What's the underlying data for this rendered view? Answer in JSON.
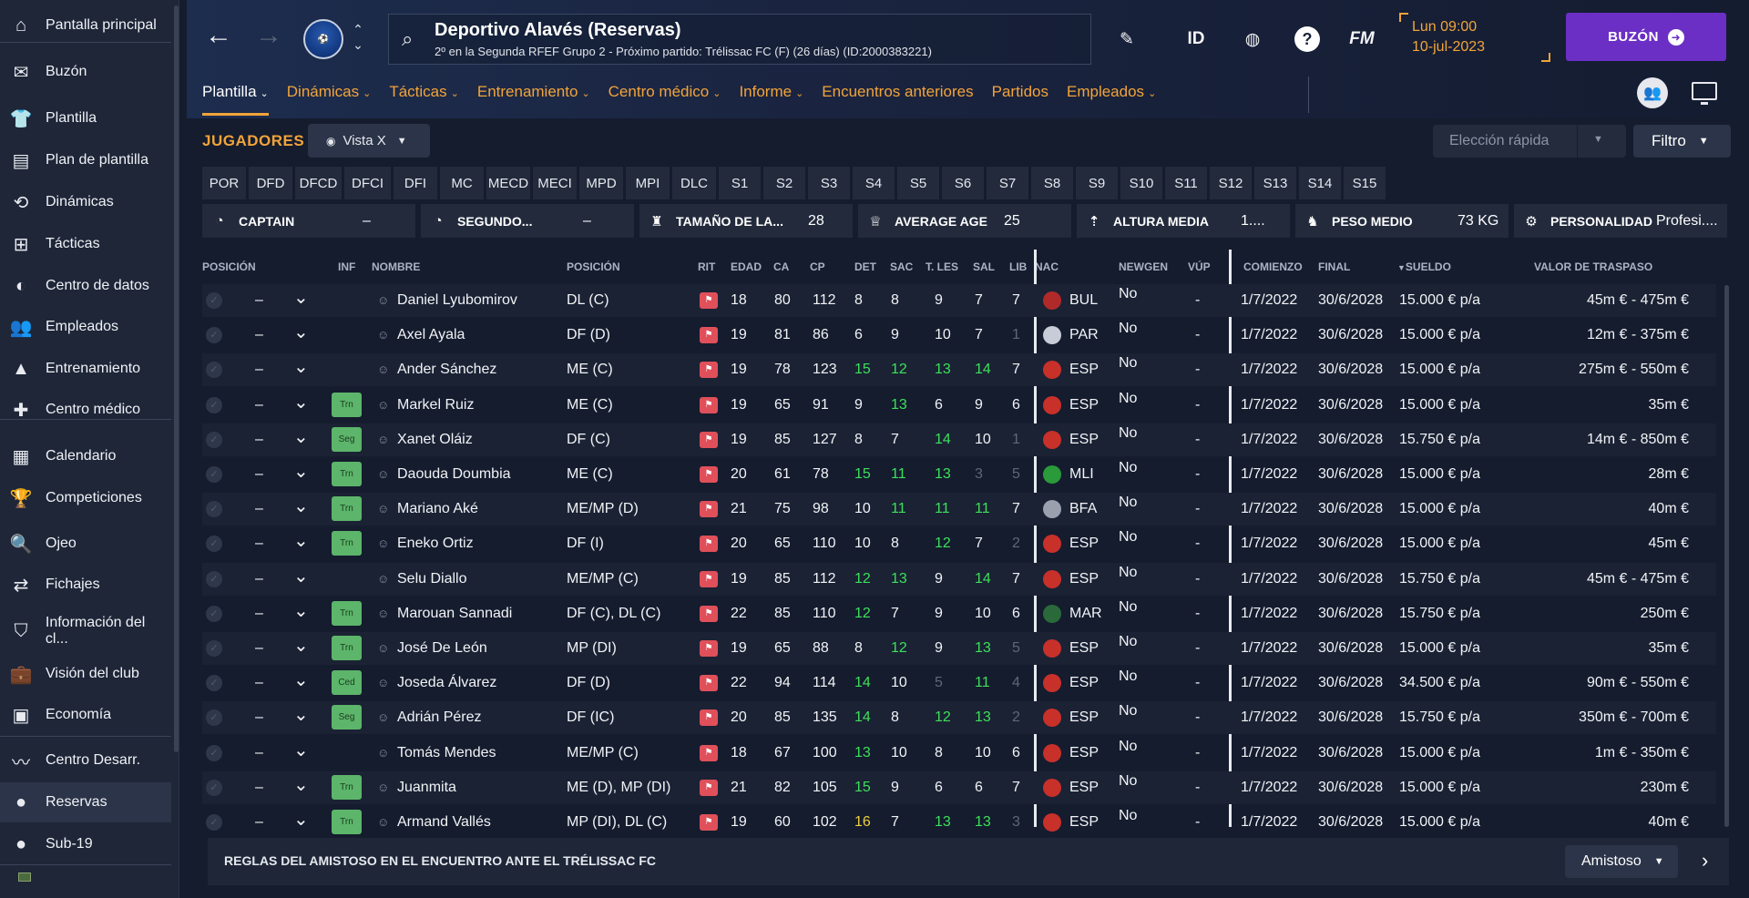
{
  "sidebar": {
    "items": [
      {
        "label": "Pantalla principal",
        "icon": "home-icon",
        "glyph": "⌂"
      },
      {
        "label": "Buzón",
        "icon": "inbox-icon",
        "glyph": "✉"
      },
      {
        "label": "Plantilla",
        "icon": "squad-icon",
        "glyph": "👕"
      },
      {
        "label": "Plan de plantilla",
        "icon": "squad-plan-icon",
        "glyph": "▤"
      },
      {
        "label": "Dinámicas",
        "icon": "dynamics-icon",
        "glyph": "⟲"
      },
      {
        "label": "Tácticas",
        "icon": "tactics-icon",
        "glyph": "⊞"
      },
      {
        "label": "Centro de datos",
        "icon": "data-hub-icon",
        "glyph": "◐"
      },
      {
        "label": "Empleados",
        "icon": "staff-icon",
        "glyph": "👥"
      },
      {
        "label": "Entrenamiento",
        "icon": "training-icon",
        "glyph": "▲"
      },
      {
        "label": "Centro médico",
        "icon": "medical-icon",
        "glyph": "✚"
      },
      {
        "label": "Calendario",
        "icon": "calendar-icon",
        "glyph": "▦"
      },
      {
        "label": "Competiciones",
        "icon": "trophy-icon",
        "glyph": "🏆"
      },
      {
        "label": "Ojeo",
        "icon": "scouting-icon",
        "glyph": "🔍"
      },
      {
        "label": "Fichajes",
        "icon": "transfers-icon",
        "glyph": "⇄"
      },
      {
        "label": "Información del cl...",
        "icon": "club-info-icon",
        "glyph": "⛉"
      },
      {
        "label": "Visión del club",
        "icon": "club-vision-icon",
        "glyph": "💼"
      },
      {
        "label": "Economía",
        "icon": "finances-icon",
        "glyph": "▣"
      },
      {
        "label": "Centro Desarr.",
        "icon": "dev-centre-icon",
        "glyph": "〰"
      },
      {
        "label": "Reservas",
        "icon": "reserves-icon",
        "glyph": "●"
      },
      {
        "label": "Sub-19",
        "icon": "u19-icon",
        "glyph": "●"
      }
    ]
  },
  "header": {
    "club": "Deportivo Alavés (Reservas)",
    "subtitle": "2º en la Segunda RFEF Grupo 2 - Próximo partido: Trélissac FC (F) (26 días) (ID:2000383221)",
    "id_label": "ID",
    "fm_label": "FM",
    "help_label": "?",
    "day": "Lun 09:00",
    "date": "10-jul-2023",
    "buzon": "BUZÓN"
  },
  "tabs": [
    {
      "label": "Plantilla",
      "chev": true
    },
    {
      "label": "Dinámicas",
      "chev": true
    },
    {
      "label": "Tácticas",
      "chev": true
    },
    {
      "label": "Entrenamiento",
      "chev": true
    },
    {
      "label": "Centro médico",
      "chev": true
    },
    {
      "label": "Informe",
      "chev": true
    },
    {
      "label": "Encuentros anteriores",
      "chev": false
    },
    {
      "label": "Partidos",
      "chev": false
    },
    {
      "label": "Empleados",
      "chev": true
    }
  ],
  "toolbar": {
    "title": "JUGADORES",
    "vista": "Vista X",
    "rapida": "Elección rápida",
    "filtro": "Filtro"
  },
  "position_filters": [
    "POR",
    "DFD",
    "DFCD",
    "DFCI",
    "DFI",
    "MC",
    "MECD",
    "MECI",
    "MPD",
    "MPI",
    "DLC",
    "S1",
    "S2",
    "S3",
    "S4",
    "S5",
    "S6",
    "S7",
    "S8",
    "S9",
    "S10",
    "S11",
    "S12",
    "S13",
    "S14",
    "S15"
  ],
  "stats": [
    {
      "label": "CAPTAIN",
      "value": "–",
      "icon": "captain-icon"
    },
    {
      "label": "SEGUNDO...",
      "value": "–",
      "icon": "vice-captain-icon"
    },
    {
      "label": "TAMAÑO DE LA...",
      "value": "28",
      "icon": "squad-size-icon"
    },
    {
      "label": "AVERAGE AGE",
      "value": "25",
      "icon": "age-icon"
    },
    {
      "label": "ALTURA MEDIA",
      "value": "1....",
      "icon": "height-icon"
    },
    {
      "label": "PESO MEDIO",
      "value": "73 KG",
      "icon": "weight-icon"
    },
    {
      "label": "PERSONALIDAD",
      "value": "Profesi....",
      "icon": "personality-icon"
    }
  ],
  "columns": {
    "pos": "POSICIÓN",
    "inf": "INF",
    "nombre": "NOMBRE",
    "posicion": "POSICIÓN",
    "rit": "RIT",
    "edad": "EDAD",
    "ca": "CA",
    "cp": "CP",
    "det": "DET",
    "sac": "SAC",
    "tles": "T. LES",
    "sal": "SAL",
    "lib": "LIB",
    "nac": "NAC",
    "newgen": "NEWGEN",
    "vup": "VÚP",
    "comienzo": "COMIENZO",
    "final": "FINAL",
    "sueldo": "SUELDO",
    "valor": "VALOR DE TRASPASO"
  },
  "rows": [
    {
      "dash": "–",
      "inf": "",
      "name": "Daniel Lyubomirov",
      "pos": "DL (C)",
      "edad": "18",
      "ca": "80",
      "cp": "112",
      "det": "8",
      "sac": "8",
      "tles": "9",
      "sal": "7",
      "lib": "7",
      "nac": "BUL",
      "newgen": "No",
      "vup": "-",
      "start": "1/7/2022",
      "end": "30/6/2028",
      "wage": "15.000 € p/a",
      "value": "45m € - 475m €",
      "cc": [
        "",
        "",
        "",
        "",
        ""
      ],
      "flag": "#b02a2a"
    },
    {
      "dash": "–",
      "inf": "",
      "name": "Axel Ayala",
      "pos": "DF (D)",
      "edad": "19",
      "ca": "81",
      "cp": "86",
      "det": "6",
      "sac": "9",
      "tles": "10",
      "sal": "7",
      "lib": "1",
      "nac": "PAR",
      "newgen": "No",
      "vup": "-",
      "start": "1/7/2022",
      "end": "30/6/2028",
      "wage": "15.000 € p/a",
      "value": "12m € - 375m €",
      "cc": [
        "",
        "",
        "",
        "",
        "d"
      ],
      "flag": "#c8ccd8"
    },
    {
      "dash": "–",
      "inf": "",
      "name": "Ander Sánchez",
      "pos": "ME (C)",
      "edad": "19",
      "ca": "78",
      "cp": "123",
      "det": "15",
      "sac": "12",
      "tles": "13",
      "sal": "14",
      "lib": "7",
      "nac": "ESP",
      "newgen": "No",
      "vup": "-",
      "start": "1/7/2022",
      "end": "30/6/2028",
      "wage": "15.000 € p/a",
      "value": "275m € - 550m €",
      "cc": [
        "g",
        "g",
        "g",
        "g",
        ""
      ],
      "flag": "#c8302a"
    },
    {
      "dash": "–",
      "inf": "Trn",
      "name": "Markel Ruiz",
      "pos": "ME (C)",
      "edad": "19",
      "ca": "65",
      "cp": "91",
      "det": "9",
      "sac": "13",
      "tles": "6",
      "sal": "9",
      "lib": "6",
      "nac": "ESP",
      "newgen": "No",
      "vup": "-",
      "start": "1/7/2022",
      "end": "30/6/2028",
      "wage": "15.000 € p/a",
      "value": "35m €",
      "cc": [
        "",
        "g",
        "",
        "",
        ""
      ],
      "flag": "#c8302a"
    },
    {
      "dash": "–",
      "inf": "Seg",
      "name": "Xanet Oláiz",
      "pos": "DF (C)",
      "edad": "19",
      "ca": "85",
      "cp": "127",
      "det": "8",
      "sac": "7",
      "tles": "14",
      "sal": "10",
      "lib": "1",
      "nac": "ESP",
      "newgen": "No",
      "vup": "-",
      "start": "1/7/2022",
      "end": "30/6/2028",
      "wage": "15.750 € p/a",
      "value": "14m € - 850m €",
      "cc": [
        "",
        "",
        "g",
        "",
        "d"
      ],
      "flag": "#c8302a"
    },
    {
      "dash": "–",
      "inf": "Trn",
      "name": "Daouda Doumbia",
      "pos": "ME (C)",
      "edad": "20",
      "ca": "61",
      "cp": "78",
      "det": "15",
      "sac": "11",
      "tles": "13",
      "sal": "3",
      "lib": "5",
      "nac": "MLI",
      "newgen": "No",
      "vup": "-",
      "start": "1/7/2022",
      "end": "30/6/2028",
      "wage": "15.000 € p/a",
      "value": "28m €",
      "cc": [
        "g",
        "g",
        "g",
        "d",
        "d"
      ],
      "flag": "#2a9a3a"
    },
    {
      "dash": "–",
      "inf": "Trn",
      "name": "Mariano Aké",
      "pos": "ME/MP (D)",
      "edad": "21",
      "ca": "75",
      "cp": "98",
      "det": "10",
      "sac": "11",
      "tles": "11",
      "sal": "11",
      "lib": "7",
      "nac": "BFA",
      "newgen": "No",
      "vup": "-",
      "start": "1/7/2022",
      "end": "30/6/2028",
      "wage": "15.000 € p/a",
      "value": "40m €",
      "cc": [
        "",
        "g",
        "g",
        "g",
        ""
      ],
      "flag": "#9aa0ae"
    },
    {
      "dash": "–",
      "inf": "Trn",
      "name": "Eneko Ortiz",
      "pos": "DF (I)",
      "edad": "20",
      "ca": "65",
      "cp": "110",
      "det": "10",
      "sac": "8",
      "tles": "12",
      "sal": "7",
      "lib": "2",
      "nac": "ESP",
      "newgen": "No",
      "vup": "-",
      "start": "1/7/2022",
      "end": "30/6/2028",
      "wage": "15.000 € p/a",
      "value": "45m €",
      "cc": [
        "",
        "",
        "g",
        "",
        "d"
      ],
      "flag": "#c8302a"
    },
    {
      "dash": "–",
      "inf": "",
      "name": "Selu Diallo",
      "pos": "ME/MP (C)",
      "edad": "19",
      "ca": "85",
      "cp": "112",
      "det": "12",
      "sac": "13",
      "tles": "9",
      "sal": "14",
      "lib": "7",
      "nac": "ESP",
      "newgen": "No",
      "vup": "-",
      "start": "1/7/2022",
      "end": "30/6/2028",
      "wage": "15.750 € p/a",
      "value": "45m € - 475m €",
      "cc": [
        "g",
        "g",
        "",
        "g",
        ""
      ],
      "flag": "#c8302a"
    },
    {
      "dash": "–",
      "inf": "Trn",
      "name": "Marouan Sannadi",
      "pos": "DF (C), DL (C)",
      "edad": "22",
      "ca": "85",
      "cp": "110",
      "det": "12",
      "sac": "7",
      "tles": "9",
      "sal": "10",
      "lib": "6",
      "nac": "MAR",
      "newgen": "No",
      "vup": "-",
      "start": "1/7/2022",
      "end": "30/6/2028",
      "wage": "15.750 € p/a",
      "value": "250m €",
      "cc": [
        "g",
        "",
        "",
        "",
        ""
      ],
      "flag": "#2a6a3a"
    },
    {
      "dash": "–",
      "inf": "Trn",
      "name": "José De León",
      "pos": "MP (DI)",
      "edad": "19",
      "ca": "65",
      "cp": "88",
      "det": "8",
      "sac": "12",
      "tles": "9",
      "sal": "13",
      "lib": "5",
      "nac": "ESP",
      "newgen": "No",
      "vup": "-",
      "start": "1/7/2022",
      "end": "30/6/2028",
      "wage": "15.000 € p/a",
      "value": "35m €",
      "cc": [
        "",
        "g",
        "",
        "g",
        "d"
      ],
      "flag": "#c8302a"
    },
    {
      "dash": "–",
      "inf": "Ced",
      "name": "Joseda Álvarez",
      "pos": "DF (D)",
      "edad": "22",
      "ca": "94",
      "cp": "114",
      "det": "14",
      "sac": "10",
      "tles": "5",
      "sal": "11",
      "lib": "4",
      "nac": "ESP",
      "newgen": "No",
      "vup": "-",
      "start": "1/7/2022",
      "end": "30/6/2028",
      "wage": "34.500 € p/a",
      "value": "90m € - 550m €",
      "cc": [
        "g",
        "",
        "d",
        "g",
        "d"
      ],
      "flag": "#c8302a"
    },
    {
      "dash": "–",
      "inf": "Seg",
      "name": "Adrián Pérez",
      "pos": "DF (IC)",
      "edad": "20",
      "ca": "85",
      "cp": "135",
      "det": "14",
      "sac": "8",
      "tles": "12",
      "sal": "13",
      "lib": "2",
      "nac": "ESP",
      "newgen": "No",
      "vup": "-",
      "start": "1/7/2022",
      "end": "30/6/2028",
      "wage": "15.750 € p/a",
      "value": "350m € - 700m €",
      "cc": [
        "g",
        "",
        "g",
        "g",
        "d"
      ],
      "flag": "#c8302a"
    },
    {
      "dash": "–",
      "inf": "",
      "name": "Tomás Mendes",
      "pos": "ME/MP (C)",
      "edad": "18",
      "ca": "67",
      "cp": "100",
      "det": "13",
      "sac": "10",
      "tles": "8",
      "sal": "10",
      "lib": "6",
      "nac": "ESP",
      "newgen": "No",
      "vup": "-",
      "start": "1/7/2022",
      "end": "30/6/2028",
      "wage": "15.000 € p/a",
      "value": "1m € - 350m €",
      "cc": [
        "g",
        "",
        "",
        "",
        ""
      ],
      "flag": "#c8302a"
    },
    {
      "dash": "–",
      "inf": "Trn",
      "name": "Juanmita",
      "pos": "ME (D), MP (DI)",
      "edad": "21",
      "ca": "82",
      "cp": "105",
      "det": "15",
      "sac": "9",
      "tles": "6",
      "sal": "6",
      "lib": "7",
      "nac": "ESP",
      "newgen": "No",
      "vup": "-",
      "start": "1/7/2022",
      "end": "30/6/2028",
      "wage": "15.000 € p/a",
      "value": "230m €",
      "cc": [
        "g",
        "",
        "",
        "",
        ""
      ],
      "flag": "#c8302a"
    },
    {
      "dash": "–",
      "inf": "Trn",
      "name": "Armand Vallés",
      "pos": "MP (DI), DL (C)",
      "edad": "19",
      "ca": "60",
      "cp": "102",
      "det": "16",
      "sac": "7",
      "tles": "13",
      "sal": "13",
      "lib": "3",
      "nac": "ESP",
      "newgen": "No",
      "vup": "-",
      "start": "1/7/2022",
      "end": "30/6/2028",
      "wage": "15.000 € p/a",
      "value": "40m €",
      "cc": [
        "y",
        "",
        "g",
        "g",
        "d"
      ],
      "flag": "#c8302a"
    }
  ],
  "footer": {
    "text": "REGLAS DEL AMISTOSO EN EL ENCUENTRO ANTE EL TRÉLISSAC FC",
    "select": "Amistoso"
  }
}
